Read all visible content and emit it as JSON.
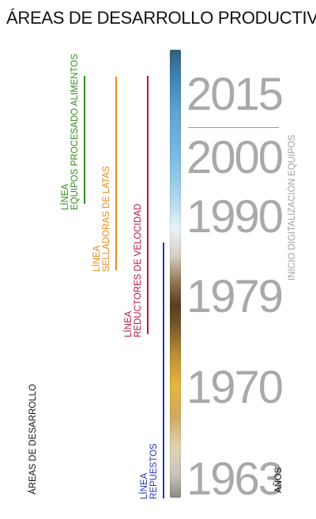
{
  "title": "ÁREAS DE DESARROLLO PRODUCTIVO",
  "colors": {
    "green": "#2f8c1c",
    "orange": "#e68a16",
    "crimson": "#b5143a",
    "blue": "#2436b8",
    "year_gray": "#a9a9a9"
  },
  "lines": [
    {
      "line1": "LÍNEA",
      "line2": "EQUIPOS PROCESADO ALIMENTOS"
    },
    {
      "line1": "LÍNEA",
      "line2": "SELLADORAS DE LATAS"
    },
    {
      "line1": "LÍNEA",
      "line2": "REDUCTORES DE VELOCIDAD"
    },
    {
      "line1": "LÍNEA",
      "line2": "REPUESTOS"
    }
  ],
  "years": [
    "2015",
    "2000",
    "1990",
    "1979",
    "1970",
    "1963"
  ],
  "y_axis_label": "ÁREAS DE DESARROLLO",
  "x_axis_label": "AÑOS",
  "annotation": "INICIO DIGITALIZACIÓN EQUIPOS"
}
